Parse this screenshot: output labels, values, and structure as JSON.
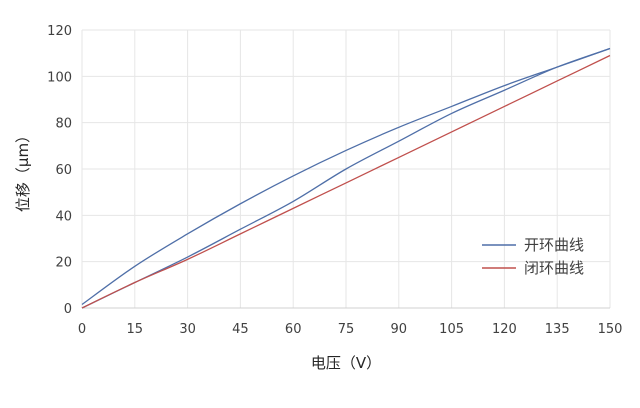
{
  "chart_data": {
    "type": "line",
    "xlabel": "电压（V）",
    "ylabel": "位移（μm）",
    "xlim": [
      0,
      150
    ],
    "ylim": [
      0,
      120
    ],
    "x_ticks": [
      "0",
      "15",
      "30",
      "45",
      "60",
      "75",
      "90",
      "105",
      "120",
      "135",
      "150"
    ],
    "y_ticks": [
      "0",
      "20",
      "40",
      "60",
      "80",
      "100",
      "120"
    ],
    "grid": true,
    "legend_position": "bottom-right",
    "series": [
      {
        "name": "开环曲线",
        "color": "#4f6fa8",
        "branches": [
          {
            "x": [
              0,
              15,
              30,
              45,
              60,
              75,
              90,
              105,
              120,
              135,
              150
            ],
            "y": [
              1.5,
              18,
              32,
              45,
              57,
              68,
              78,
              87,
              96,
              104,
              112
            ]
          },
          {
            "x": [
              0,
              15,
              30,
              45,
              60,
              75,
              90,
              105,
              120,
              135,
              150
            ],
            "y": [
              0,
              11,
              22,
              34,
              46,
              60,
              72,
              84,
              94,
              104,
              112
            ]
          }
        ]
      },
      {
        "name": "闭环曲线",
        "color": "#c0504d",
        "branches": [
          {
            "x": [
              0,
              15,
              30,
              45,
              60,
              75,
              90,
              105,
              120,
              135,
              150
            ],
            "y": [
              0,
              11,
              21,
              32,
              43,
              54,
              65,
              76,
              87,
              98,
              109
            ]
          }
        ]
      }
    ]
  }
}
